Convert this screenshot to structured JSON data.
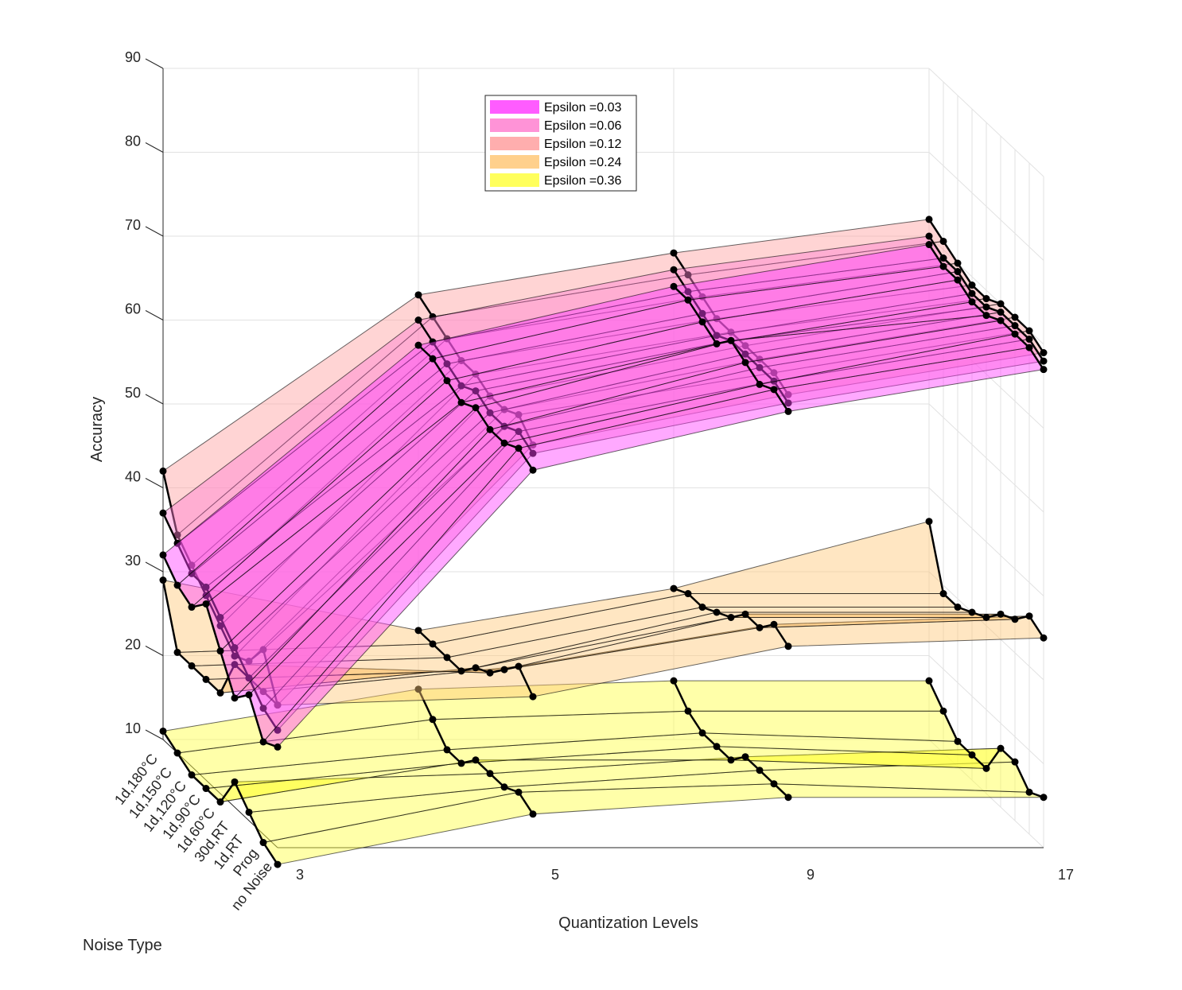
{
  "chart_data": {
    "type": "3d-surface",
    "xlabel": "Quantization Levels",
    "ylabel": "Noise Type",
    "zlabel": "Accuracy",
    "x_ticks": [
      "3",
      "5",
      "9",
      "17"
    ],
    "y_ticks": [
      "1d,180°C",
      "1d,150°C",
      "1d,120°C",
      "1d,90°C",
      "1d,60°C",
      "30d,RT",
      "1d,RT",
      "Prog",
      "no Noise"
    ],
    "z_ticks": [
      "10",
      "20",
      "30",
      "40",
      "50",
      "60",
      "70",
      "80",
      "90"
    ],
    "zlim": [
      10,
      90
    ],
    "grid": true,
    "legend_position": "top-center",
    "series": [
      {
        "name": "Epsilon =0.03",
        "color": "#ff40ff",
        "values": [
          [
            32,
            30,
            29,
            31,
            27,
            23,
            25,
            21,
            22
          ],
          [
            57,
            57,
            56,
            55,
            56,
            55,
            55,
            56,
            55
          ],
          [
            64,
            64,
            63,
            62,
            64,
            63,
            62,
            63,
            62
          ],
          [
            69,
            68,
            68,
            67,
            67,
            68,
            68,
            68,
            67
          ]
        ]
      },
      {
        "name": "Epsilon =0.06",
        "color": "#ff80d0",
        "values": [
          [
            37,
            35,
            33,
            33,
            31,
            29,
            27,
            25,
            24
          ],
          [
            60,
            59,
            58,
            57,
            58,
            57,
            57,
            58,
            57
          ],
          [
            66,
            65,
            64,
            63,
            64,
            64,
            64,
            64,
            63
          ],
          [
            70,
            69,
            69,
            68,
            68,
            69,
            69,
            69,
            68
          ]
        ]
      },
      {
        "name": "Epsilon =0.12",
        "color": "#ffa0a0",
        "values": [
          [
            42,
            36,
            34,
            32,
            30,
            28,
            29,
            32,
            27
          ],
          [
            63,
            62,
            61,
            60,
            60,
            59,
            59,
            60,
            58
          ],
          [
            68,
            67,
            66,
            65,
            65,
            65,
            65,
            65,
            64
          ],
          [
            72,
            71,
            70,
            69,
            69,
            70,
            70,
            70,
            69
          ]
        ]
      },
      {
        "name": "Epsilon =0.24",
        "color": "#ffc878",
        "values": [
          [
            29,
            22,
            22,
            22,
            22,
            27,
            27,
            27,
            27
          ],
          [
            23,
            23,
            23,
            23,
            25,
            26,
            28,
            30,
            28
          ],
          [
            28,
            29,
            29,
            30,
            31,
            33,
            33,
            35,
            34
          ],
          [
            36,
            29,
            29,
            30,
            31,
            33,
            34,
            36,
            35
          ]
        ]
      },
      {
        "name": "Epsilon =0.36",
        "color": "#ffff40",
        "values": [
          [
            11,
            10,
            9,
            9,
            9,
            13,
            11,
            9,
            8
          ],
          [
            16,
            14,
            12,
            12,
            14,
            14,
            14,
            15,
            14
          ],
          [
            17,
            15,
            14,
            14,
            14,
            16,
            16,
            16,
            16
          ],
          [
            17,
            15,
            13,
            13,
            13,
            17,
            17,
            15,
            16
          ]
        ]
      }
    ]
  }
}
